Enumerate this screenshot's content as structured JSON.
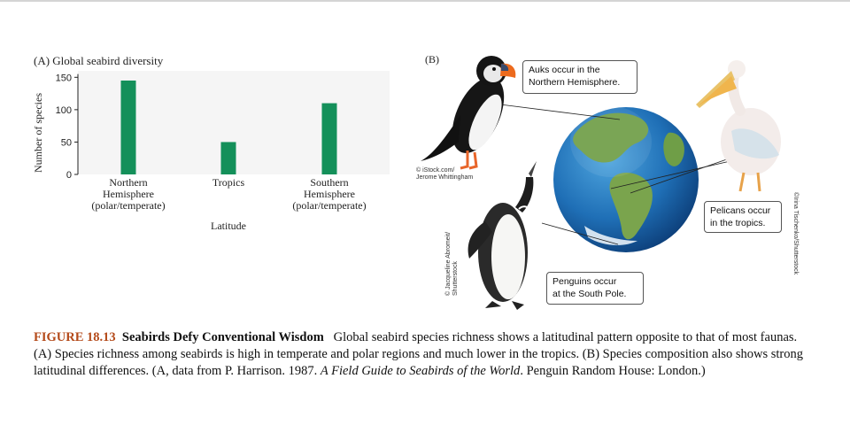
{
  "panel_a": {
    "title": "(A) Global seabird diversity",
    "bar_color": "#14905a"
  },
  "chart_data": {
    "type": "bar",
    "title": "(A) Global seabird diversity",
    "categories": [
      [
        "Northern",
        "Hemisphere",
        "(polar/temperate)"
      ],
      [
        "Tropics"
      ],
      [
        "Southern",
        "Hemisphere",
        "(polar/temperate)"
      ]
    ],
    "values": [
      145,
      50,
      110
    ],
    "xlabel": "Latitude",
    "ylabel": "Number of species",
    "yticks": [
      0,
      50,
      100,
      150
    ],
    "ylim": [
      0,
      160
    ],
    "grid": false
  },
  "panel_b": {
    "label": "(B)",
    "callouts": {
      "auks": [
        "Auks occur in the",
        "Northern Hemisphere."
      ],
      "pelicans": [
        "Pelicans occur",
        "in the tropics."
      ],
      "penguins": [
        "Penguins occur",
        "at the South Pole."
      ]
    },
    "credits": {
      "puffin": [
        "© iStock.com/",
        "Jerome Whittingham"
      ],
      "penguin": [
        "© Jacqueline Abromeit/",
        "Shutterstock"
      ],
      "pelican": [
        "©Irina Tischenko/Shutterstock"
      ]
    }
  },
  "caption": {
    "figure_number": "FIGURE 18.13",
    "figure_title": "Seabirds Defy Conventional Wisdom",
    "text_main": "Global seabird species richness shows a latitudinal pattern opposite to that of most faunas. (A) Species richness among seabirds is high in temperate and polar regions and much lower in the tropics. (B) Species composition also shows strong latitudinal differences. (A, data from P. Harrison. 1987. ",
    "book_title": "A Field Guide to Seabirds of the World",
    "text_end": ". Penguin Random House: London.)"
  }
}
